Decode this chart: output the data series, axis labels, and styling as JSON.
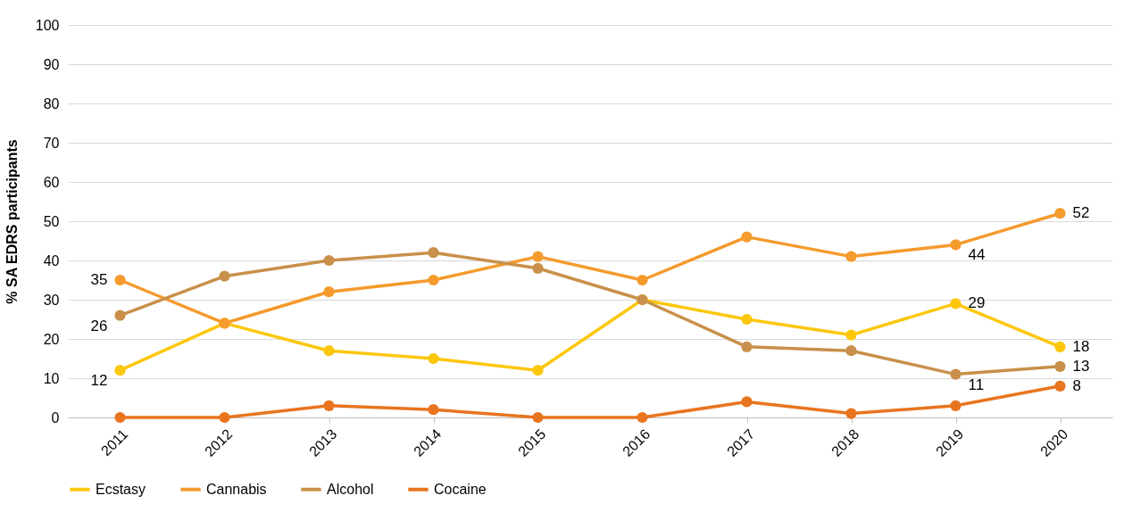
{
  "chart_data": {
    "type": "line",
    "ylabel": "% SA EDRS participants",
    "categories": [
      "2011",
      "2012",
      "2013",
      "2014",
      "2015",
      "2016",
      "2017",
      "2018",
      "2019",
      "2020"
    ],
    "ylim": [
      0,
      100
    ],
    "yticks": [
      0,
      10,
      20,
      30,
      40,
      50,
      60,
      70,
      80,
      90,
      100
    ],
    "grid": "y",
    "legend": "bottom",
    "marker": "circle",
    "line_style": "solid",
    "series": [
      {
        "name": "Ecstasy",
        "color": "#fcc70d",
        "values": [
          12,
          24,
          17,
          15,
          12,
          30,
          25,
          21,
          29,
          18
        ],
        "value_labels": [
          "12",
          null,
          null,
          null,
          null,
          null,
          null,
          null,
          "29",
          "18"
        ]
      },
      {
        "name": "Cannabis",
        "color": "#f59a2c",
        "values": [
          35,
          24,
          32,
          35,
          41,
          35,
          46,
          41,
          44,
          52
        ],
        "value_labels": [
          "35",
          null,
          null,
          null,
          null,
          null,
          null,
          null,
          "44",
          "52"
        ]
      },
      {
        "name": "Alcohol",
        "color": "#c8904a",
        "values": [
          26,
          36,
          40,
          42,
          38,
          30,
          18,
          17,
          11,
          13
        ],
        "value_labels": [
          "26",
          null,
          null,
          null,
          null,
          null,
          null,
          null,
          "11",
          "13"
        ]
      },
      {
        "name": "Cocaine",
        "color": "#e9741f",
        "values": [
          0,
          0,
          3,
          2,
          0,
          0,
          4,
          1,
          3,
          8
        ],
        "value_labels": [
          null,
          null,
          null,
          null,
          null,
          null,
          null,
          null,
          null,
          "8"
        ]
      }
    ]
  }
}
